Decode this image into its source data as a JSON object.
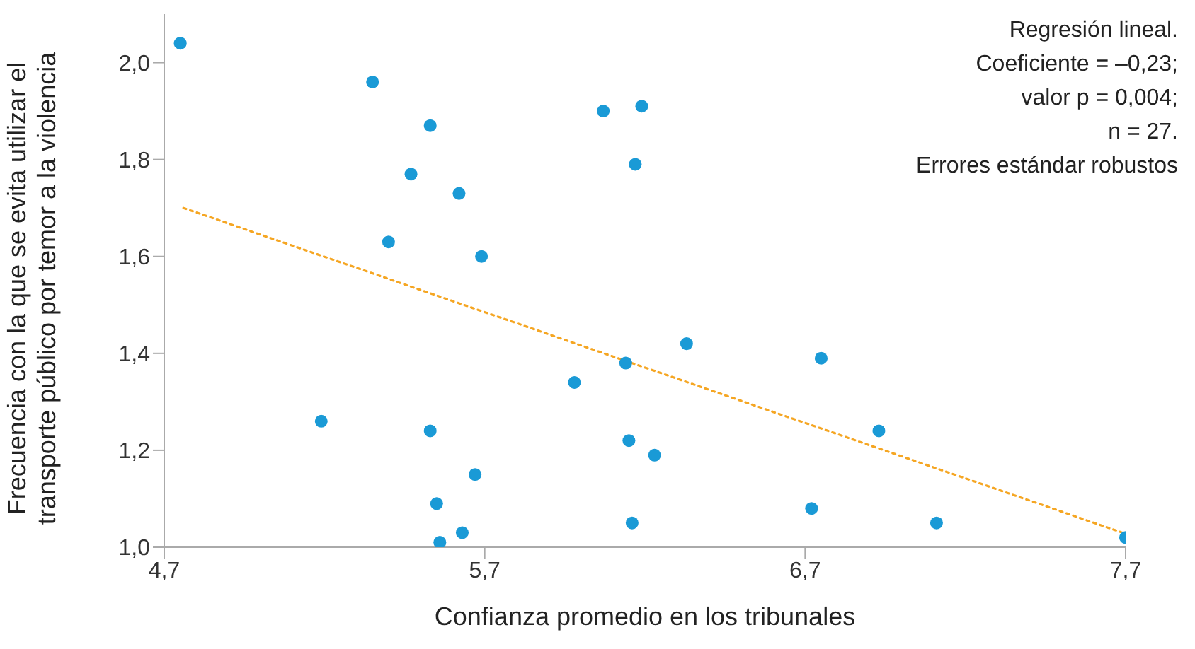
{
  "chart_data": {
    "type": "scatter",
    "xlabel": "Confianza promedio en los tribunales",
    "ylabel": "Frecuencia con la que se evita utilizar el transporte público por temor a la violencia",
    "xlim": [
      4.7,
      7.7
    ],
    "xticks": [
      {
        "value": 4.7,
        "label": "4,7"
      },
      {
        "value": 5.7,
        "label": "5,7"
      },
      {
        "value": 6.7,
        "label": "6,7"
      },
      {
        "value": 7.7,
        "label": "7,7"
      }
    ],
    "ylim": [
      1.0,
      2.1
    ],
    "yticks": [
      {
        "value": 1.0,
        "label": "1,0"
      },
      {
        "value": 1.2,
        "label": "1,2"
      },
      {
        "value": 1.4,
        "label": "1,4"
      },
      {
        "value": 1.6,
        "label": "1,6"
      },
      {
        "value": 1.8,
        "label": "1,8"
      },
      {
        "value": 2.0,
        "label": "2,0"
      }
    ],
    "marker": "circle",
    "annotations": [
      "Regresión lineal.",
      "Coeficiente = –0,23;",
      "valor p = 0,004;",
      "n = 27.",
      "Errores estándar robustos"
    ],
    "series": [
      {
        "color": "#1a9ad6",
        "x": [
          4.75,
          5.35,
          5.53,
          5.47,
          5.62,
          5.4,
          5.69,
          5.19,
          5.53,
          5.67,
          5.55,
          5.63,
          5.56,
          6.07,
          6.19,
          6.17,
          6.33,
          6.14,
          5.98,
          6.15,
          6.23,
          6.16,
          6.75,
          6.93,
          6.72,
          7.11,
          7.7
        ],
        "values": [
          2.04,
          1.96,
          1.87,
          1.77,
          1.73,
          1.63,
          1.6,
          1.26,
          1.24,
          1.15,
          1.09,
          1.03,
          1.01,
          1.9,
          1.91,
          1.79,
          1.42,
          1.38,
          1.34,
          1.22,
          1.19,
          1.05,
          1.39,
          1.24,
          1.08,
          1.05,
          1.02
        ]
      },
      {
        "type": "line",
        "color": "#f5a623",
        "line_style": "dotted",
        "marker": "none",
        "x": [
          4.76,
          7.69
        ],
        "values": [
          1.7,
          1.03
        ]
      }
    ]
  }
}
